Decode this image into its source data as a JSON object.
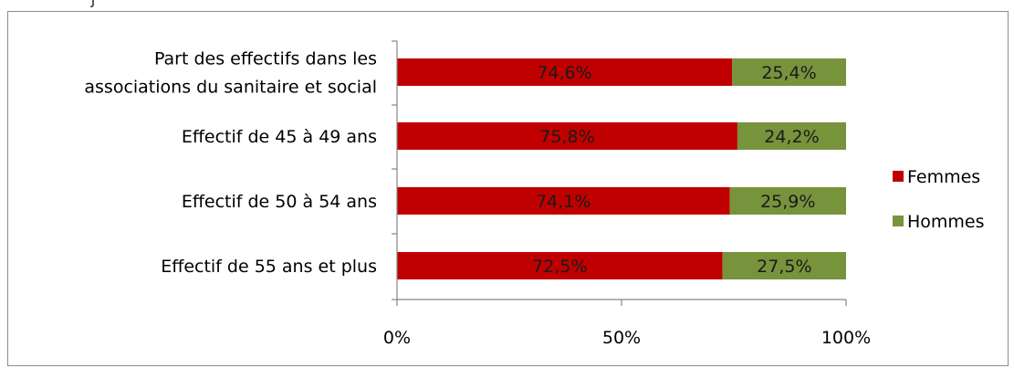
{
  "chart_data": {
    "type": "bar",
    "stacked": true,
    "orientation": "horizontal",
    "percent_stacked": true,
    "categories": [
      [
        "Part des effectifs dans les",
        "associations du sanitaire et social"
      ],
      [
        "Effectif de 45 à 49 ans"
      ],
      [
        "Effectif de 50 à 54 ans"
      ],
      [
        "Effectif de 55 ans et plus"
      ]
    ],
    "series": [
      {
        "name": "Femmes",
        "color": "#c00000",
        "values": [
          74.6,
          75.8,
          74.1,
          72.5
        ],
        "labels": [
          "74,6%",
          "75,8%",
          "74,1%",
          "72,5%"
        ]
      },
      {
        "name": "Hommes",
        "color": "#77933c",
        "values": [
          25.4,
          24.2,
          25.9,
          27.5
        ],
        "labels": [
          "25,4%",
          "24,2%",
          "25,9%",
          "27,5%"
        ]
      }
    ],
    "xlim": [
      0,
      100
    ],
    "x_ticks": [
      0,
      50,
      100
    ],
    "x_tick_labels": [
      "0%",
      "50%",
      "100%"
    ],
    "legend_position": "right",
    "grid": false
  }
}
